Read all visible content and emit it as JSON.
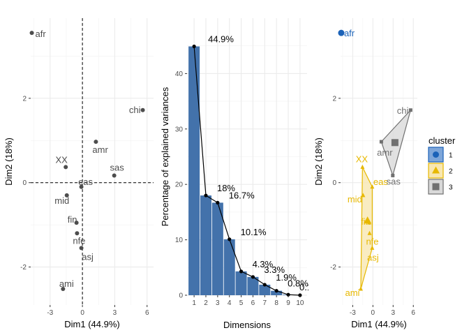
{
  "chart_data": [
    {
      "type": "scatter",
      "xlabel": "Dim1 (44.9%)",
      "ylabel": "Dim2 (18%)",
      "xlim": [
        -4.8,
        6.6
      ],
      "ylim": [
        -2.9,
        3.9
      ],
      "xticks": [
        -3,
        0,
        3,
        6
      ],
      "yticks": [
        -2,
        0,
        2
      ],
      "grid": true,
      "point_color": "#4d4d4d",
      "points": [
        {
          "label": "afr",
          "x": -4.7,
          "y": 3.55
        },
        {
          "label": "chi",
          "x": 5.6,
          "y": 1.72
        },
        {
          "label": "amr",
          "x": 1.25,
          "y": 0.97
        },
        {
          "label": "XX",
          "x": -1.55,
          "y": 0.37
        },
        {
          "label": "sas",
          "x": 2.95,
          "y": 0.17
        },
        {
          "label": "eas",
          "x": -0.1,
          "y": -0.1
        },
        {
          "label": "mid",
          "x": -1.45,
          "y": -0.3
        },
        {
          "label": "fin",
          "x": -0.55,
          "y": -0.95
        },
        {
          "label": "nfe",
          "x": -0.5,
          "y": -1.2
        },
        {
          "label": "asj",
          "x": -0.1,
          "y": -1.55
        },
        {
          "label": "ami",
          "x": -1.8,
          "y": -2.52
        }
      ]
    },
    {
      "type": "bar",
      "xlabel": "Dimensions",
      "ylabel": "Percentage of explained variances",
      "ylim": [
        0,
        50
      ],
      "yticks": [
        0,
        10,
        20,
        30,
        40
      ],
      "categories": [
        "1",
        "2",
        "3",
        "4",
        "5",
        "6",
        "7",
        "8",
        "9",
        "10"
      ],
      "values": [
        44.9,
        18.0,
        16.7,
        10.1,
        4.3,
        3.3,
        1.9,
        0.8,
        0.1,
        0.0
      ],
      "data_labels": [
        "44.9%",
        "18%",
        "16.7%",
        "10.1%",
        "4.3%",
        "3.3%",
        "1.9%",
        "0.8%",
        "0.1%",
        "0%"
      ],
      "bar_color": "#4372ab",
      "line_color": "#000000"
    },
    {
      "type": "scatter",
      "xlabel": "Dim1 (44.9%)",
      "ylabel": "Dim2 (18%)",
      "xlim": [
        -4.8,
        6.6
      ],
      "ylim": [
        -2.9,
        3.9
      ],
      "xticks": [
        -3,
        0,
        3,
        6
      ],
      "yticks": [
        -2,
        0,
        2
      ],
      "grid": true,
      "legend": {
        "title": "cluster",
        "placement": "right",
        "items": [
          {
            "label": "1",
            "color": "#1b62b8",
            "shape": "circle"
          },
          {
            "label": "2",
            "color": "#e7b800",
            "shape": "triangle"
          },
          {
            "label": "3",
            "color": "#707070",
            "shape": "square"
          }
        ]
      },
      "clusters": [
        {
          "id": "1",
          "color": "#1b62b8",
          "fill": "#7ea6d9",
          "points": [
            {
              "label": "afr",
              "x": -4.7,
              "y": 3.55
            }
          ],
          "hull": [],
          "center": {
            "x": -4.7,
            "y": 3.55
          }
        },
        {
          "id": "2",
          "color": "#e7b800",
          "fill": "#f8e7b1",
          "points": [
            {
              "label": "XX",
              "x": -1.55,
              "y": 0.37
            },
            {
              "label": "eas",
              "x": -0.1,
              "y": -0.1
            },
            {
              "label": "mid",
              "x": -1.45,
              "y": -0.3
            },
            {
              "label": "fin",
              "x": -0.55,
              "y": -0.95
            },
            {
              "label": "nfe",
              "x": -0.5,
              "y": -1.2
            },
            {
              "label": "asj",
              "x": -0.1,
              "y": -1.55
            },
            {
              "label": "ami",
              "x": -1.8,
              "y": -2.52
            }
          ],
          "hull": [
            "XX",
            "eas",
            "asj",
            "ami"
          ],
          "center": {
            "x": -0.8,
            "y": -0.9
          }
        },
        {
          "id": "3",
          "color": "#707070",
          "fill": "#d9d9d9",
          "points": [
            {
              "label": "chi",
              "x": 5.6,
              "y": 1.72
            },
            {
              "label": "amr",
              "x": 1.25,
              "y": 0.97
            },
            {
              "label": "sas",
              "x": 2.95,
              "y": 0.17
            }
          ],
          "hull": [
            "chi",
            "amr",
            "sas"
          ],
          "center": {
            "x": 3.27,
            "y": 0.95
          }
        }
      ]
    }
  ]
}
